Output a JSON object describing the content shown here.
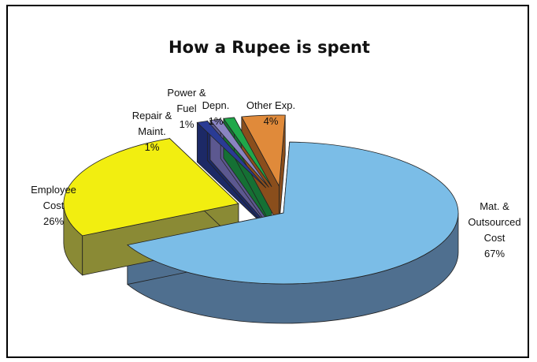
{
  "chart_data": {
    "type": "pie",
    "title": "How a Rupee is spent",
    "slices": [
      {
        "label_lines": [
          "Mat. &",
          "Outsourced",
          "Cost",
          "67%"
        ],
        "value": 67,
        "color": "#7bbde7",
        "side": "#4f6f8f",
        "exploded": false
      },
      {
        "label_lines": [
          "Employee",
          "Cost",
          "26%"
        ],
        "value": 26,
        "color": "#f2ee10",
        "side": "#8a8a35",
        "exploded": true
      },
      {
        "label_lines": [
          "Repair &",
          "Maint.",
          "1%"
        ],
        "value": 1,
        "color": "#2a3b94",
        "side": "#1c2966",
        "exploded": true
      },
      {
        "label_lines": [
          "Power &",
          "Fuel",
          "1%"
        ],
        "value": 1,
        "color": "#8a84c2",
        "side": "#5c5890",
        "exploded": true
      },
      {
        "label_lines": [
          "Depn.",
          "1%"
        ],
        "value": 1,
        "color": "#1fa84a",
        "side": "#157034",
        "exploded": true
      },
      {
        "label_lines": [
          "Other Exp.",
          "4%"
        ],
        "value": 4,
        "color": "#e08a3a",
        "side": "#8a4e1c",
        "exploded": true
      }
    ]
  }
}
